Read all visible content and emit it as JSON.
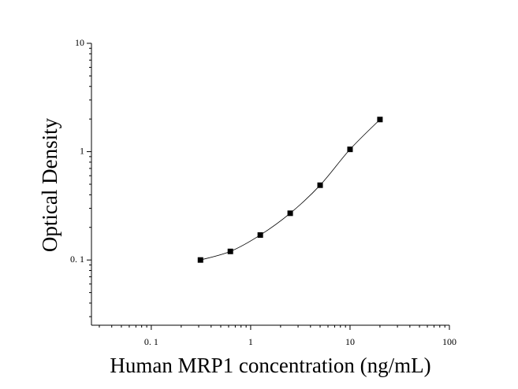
{
  "chart_data": {
    "type": "scatter",
    "xlabel": "Human MRP1 concentration (ng/mL)",
    "ylabel": "Optical Density",
    "x": [
      0.3125,
      0.625,
      1.25,
      2.5,
      5,
      10,
      20
    ],
    "series": [
      {
        "color": "#000000",
        "values": [
          0.1,
          0.12,
          0.17,
          0.27,
          0.49,
          1.05,
          1.98
        ],
        "fit_line": true
      }
    ],
    "xscale": "log",
    "yscale": "log",
    "xlim": [
      0.025,
      100
    ],
    "ylim": [
      0.025,
      10
    ],
    "xticks": [
      {
        "value": 0.1,
        "label": "0. 1"
      },
      1,
      10,
      100
    ],
    "yticks": [
      {
        "value": 0.1,
        "label": "0. 1"
      },
      1,
      10
    ],
    "grid": false
  }
}
